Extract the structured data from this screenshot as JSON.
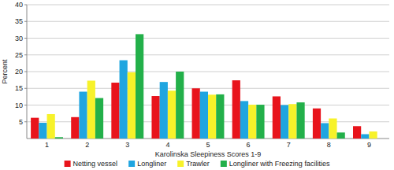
{
  "chart_data": {
    "type": "bar",
    "x_label": "Karolinska Sleepiness Scores 1-9",
    "y_label": "Percent",
    "categories": [
      "1",
      "2",
      "3",
      "4",
      "5",
      "6",
      "7",
      "8",
      "9"
    ],
    "series": [
      {
        "name": "Netting vessel",
        "color": "#e8141c",
        "values": [
          6.2,
          6.4,
          16.7,
          12.7,
          15,
          17.4,
          12.6,
          9,
          3.7
        ]
      },
      {
        "name": "Longliner",
        "color": "#1fa5e0",
        "values": [
          4.7,
          14,
          23.4,
          16.9,
          14,
          11.2,
          10,
          4.6,
          1.3
        ]
      },
      {
        "name": "Trawler",
        "color": "#f7f22a",
        "values": [
          7.3,
          17.3,
          19.8,
          14.3,
          13.1,
          10.1,
          10.3,
          6,
          2.1
        ]
      },
      {
        "name": "Longliner with Freezing facilities",
        "color": "#23b04a",
        "values": [
          0.4,
          12.1,
          31.2,
          20,
          13.2,
          10.1,
          10.8,
          1.8,
          0
        ]
      }
    ],
    "ylim": [
      0,
      40
    ],
    "yticks": [
      5,
      10,
      15,
      20,
      25,
      30,
      35,
      40
    ],
    "grid": true,
    "legend": "bottom"
  }
}
